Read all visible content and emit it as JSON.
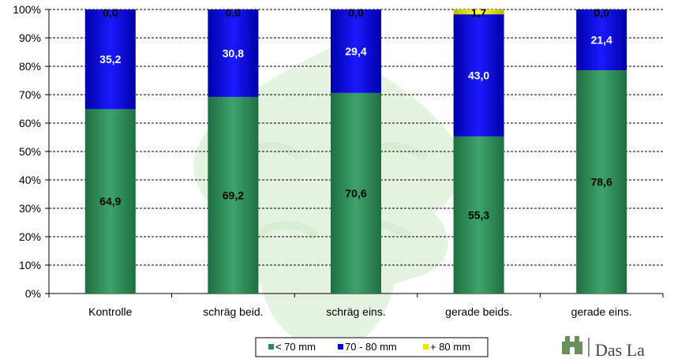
{
  "chart_data": {
    "type": "bar",
    "stacked": true,
    "percent_axis": true,
    "categories": [
      "Kontrolle",
      "schräg beid.",
      "schräg eins.",
      "gerade beids.",
      "gerade eins."
    ],
    "series": [
      {
        "name": "< 70 mm",
        "values": [
          64.9,
          69.2,
          70.6,
          55.3,
          78.6
        ],
        "labels": [
          "64,9",
          "69,2",
          "70,6",
          "55,3",
          "78,6"
        ],
        "color": "#2e8b57"
      },
      {
        "name": "70 - 80 mm",
        "values": [
          35.2,
          30.8,
          29.4,
          43.0,
          21.4
        ],
        "labels": [
          "35,2",
          "30,8",
          "29,4",
          "43,0",
          "21,4"
        ],
        "color": "#0000cc"
      },
      {
        "name": "+ 80 mm",
        "values": [
          0.0,
          0.0,
          0.0,
          1.7,
          0.0
        ],
        "labels": [
          "0,0",
          "0,0",
          "0,0",
          "1,7",
          "0,0"
        ],
        "color": "#e6e600"
      }
    ],
    "ylim": [
      0,
      100
    ],
    "yticks": [
      "0%",
      "10%",
      "20%",
      "30%",
      "40%",
      "50%",
      "60%",
      "70%",
      "80%",
      "90%",
      "100%"
    ],
    "grid": true,
    "legend_position": "bottom"
  },
  "logo": {
    "text": "Das La"
  },
  "colors": {
    "background_tree": "#c8e6c0"
  }
}
